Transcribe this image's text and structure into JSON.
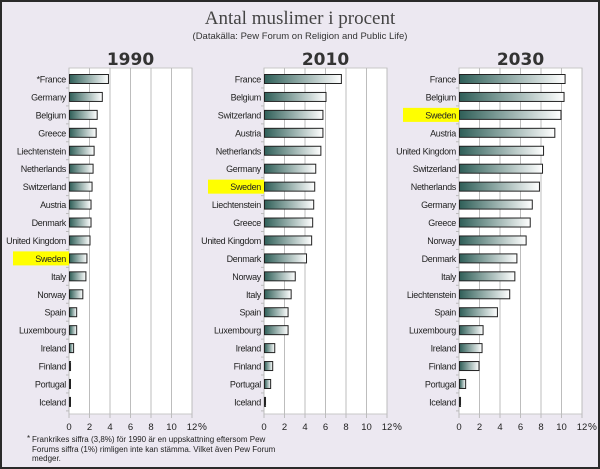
{
  "header": {
    "title": "Antal muslimer i procent",
    "subtitle": "(Datakälla: Pew Forum on Religion and Public Life)"
  },
  "footnote": {
    "marker": "*",
    "text": "Frankrikes siffra (3,8%) för 1990 är en uppskattning eftersom Pew Forums siffra (1%) rimligen inte kan stämma. Vilket även Pew Forum medger."
  },
  "colors": {
    "bar_dark": "#2f5f58",
    "bar_light": "#ffffff",
    "highlight": "#ffff00",
    "background": "#ece8f1"
  },
  "chart_data": [
    {
      "type": "bar",
      "orientation": "horizontal",
      "title": "1990",
      "xlim": [
        0,
        12
      ],
      "xticks": [
        "0",
        "2",
        "4",
        "6",
        "8",
        "10",
        "12"
      ],
      "xunit": "%",
      "grid": true,
      "highlight": "Sweden",
      "categories": [
        "*France",
        "Germany",
        "Belgium",
        "Greece",
        "Liechtenstein",
        "Netherlands",
        "Switzerland",
        "Austria",
        "Denmark",
        "United Kingdom",
        "Sweden",
        "Italy",
        "Norway",
        "Spain",
        "Luxembourg",
        "Ireland",
        "Finland",
        "Portugal",
        "Iceland"
      ],
      "values": [
        3.8,
        3.2,
        2.7,
        2.6,
        2.4,
        2.3,
        2.2,
        2.1,
        2.1,
        2.0,
        1.7,
        1.6,
        1.3,
        0.7,
        0.7,
        0.4,
        0.1,
        0.05,
        0.05
      ]
    },
    {
      "type": "bar",
      "orientation": "horizontal",
      "title": "2010",
      "xlim": [
        0,
        12
      ],
      "xticks": [
        "0",
        "2",
        "4",
        "6",
        "8",
        "10",
        "12"
      ],
      "xunit": "%",
      "grid": true,
      "highlight": "Sweden",
      "categories": [
        "France",
        "Belgium",
        "Switzerland",
        "Austria",
        "Netherlands",
        "Germany",
        "Sweden",
        "Liechtenstein",
        "Greece",
        "United Kingdom",
        "Denmark",
        "Norway",
        "Italy",
        "Spain",
        "Luxembourg",
        "Ireland",
        "Finland",
        "Portugal",
        "Iceland"
      ],
      "values": [
        7.5,
        6.0,
        5.7,
        5.7,
        5.5,
        5.0,
        4.9,
        4.8,
        4.7,
        4.6,
        4.1,
        3.0,
        2.6,
        2.3,
        2.3,
        1.0,
        0.8,
        0.6,
        0.1
      ]
    },
    {
      "type": "bar",
      "orientation": "horizontal",
      "title": "2030",
      "xlim": [
        0,
        12
      ],
      "xticks": [
        "0",
        "2",
        "4",
        "6",
        "8",
        "10",
        "12"
      ],
      "xunit": "%",
      "grid": true,
      "highlight": "Sweden",
      "categories": [
        "France",
        "Belgium",
        "Sweden",
        "Austria",
        "United Kingdom",
        "Switzerland",
        "Netherlands",
        "Germany",
        "Greece",
        "Norway",
        "Denmark",
        "Italy",
        "Liechtenstein",
        "Spain",
        "Luxembourg",
        "Ireland",
        "Finland",
        "Portugal",
        "Iceland"
      ],
      "values": [
        10.3,
        10.2,
        9.9,
        9.3,
        8.2,
        8.1,
        7.8,
        7.1,
        6.9,
        6.5,
        5.6,
        5.4,
        4.9,
        3.7,
        2.3,
        2.2,
        1.9,
        0.6,
        0.1
      ]
    }
  ]
}
